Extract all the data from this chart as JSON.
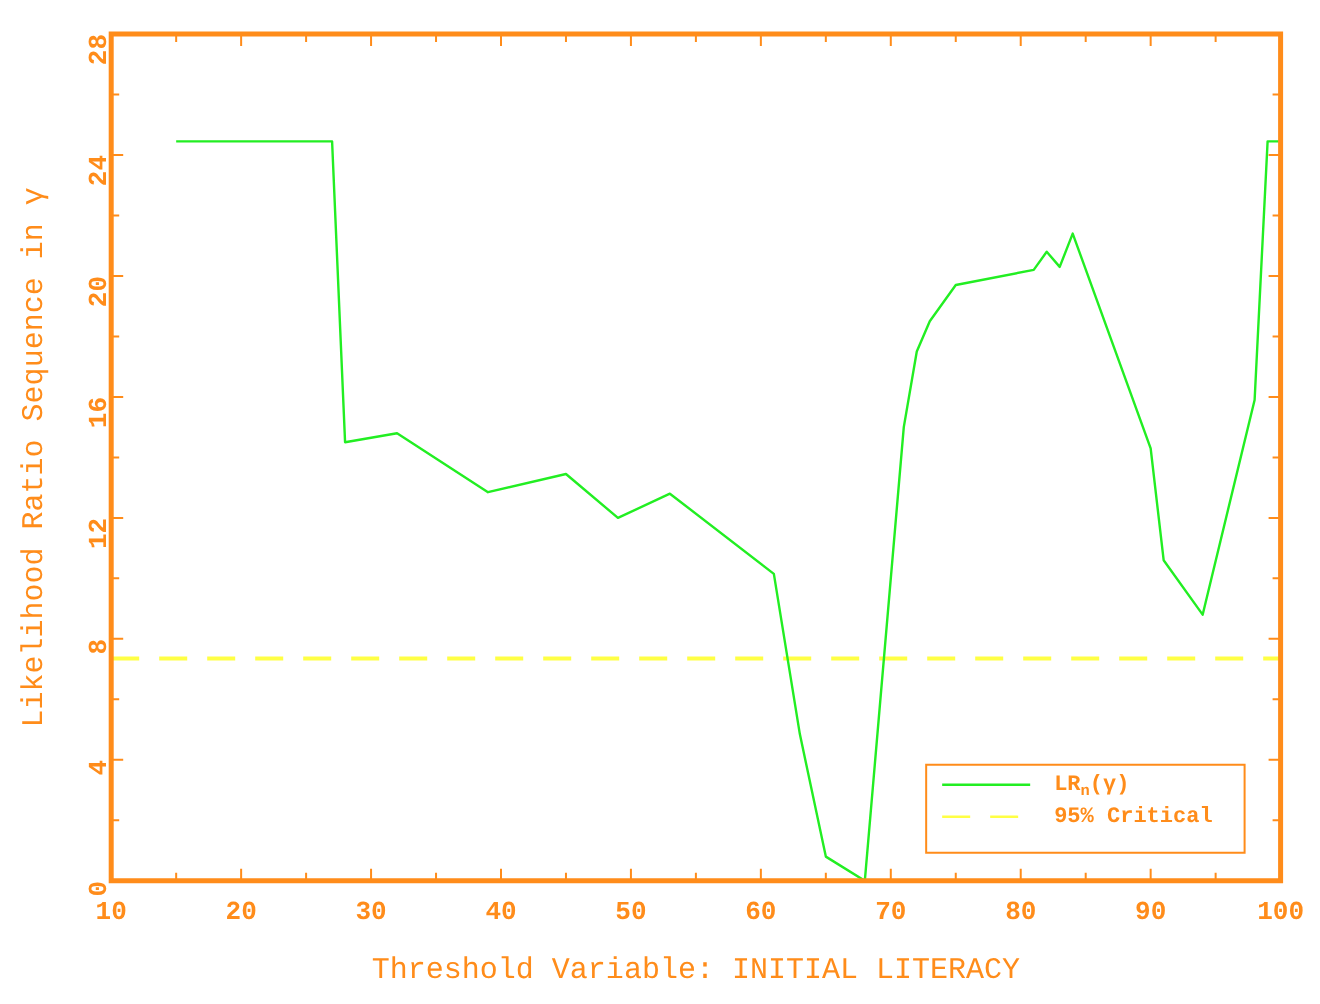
{
  "chart_data": {
    "type": "line",
    "xlabel": "Threshold Variable: INITIAL LITERACY",
    "ylabel": "Likelihood Ratio Sequence in γ",
    "xlim": [
      10,
      100
    ],
    "ylim": [
      0,
      28
    ],
    "xticks": [
      10,
      {
        "value": 15,
        "label": null
      },
      20,
      {
        "value": 25,
        "label": null
      },
      30,
      {
        "value": 35,
        "label": null
      },
      40,
      {
        "value": 45,
        "label": null
      },
      50,
      {
        "value": 55,
        "label": null
      },
      60,
      {
        "value": 65,
        "label": null
      },
      70,
      {
        "value": 75,
        "label": null
      },
      80,
      {
        "value": 85,
        "label": null
      },
      90,
      {
        "value": 95,
        "label": null
      },
      100
    ],
    "yticks": [
      0,
      {
        "value": 2,
        "label": null
      },
      4,
      {
        "value": 6,
        "label": null
      },
      8,
      {
        "value": 10,
        "label": null
      },
      12,
      {
        "value": 14,
        "label": null
      },
      16,
      {
        "value": 18,
        "label": null
      },
      20,
      {
        "value": 22,
        "label": null
      },
      24,
      {
        "value": 26,
        "label": null
      },
      28
    ],
    "grid": false,
    "legend": "bottom right",
    "marker": "none",
    "series": [
      {
        "name": "LR$_{n}$(γ)",
        "color": "#22ee22",
        "line_style": "solid",
        "x": [
          15,
          27,
          28,
          32,
          39,
          45,
          49,
          53,
          61,
          63,
          65,
          68,
          71,
          72,
          73,
          75,
          81,
          82,
          83,
          84,
          90,
          91,
          94,
          98,
          99,
          100
        ],
        "values": [
          24.45,
          24.45,
          14.5,
          14.8,
          12.85,
          13.45,
          12.0,
          12.8,
          10.15,
          4.85,
          0.8,
          0.0,
          15.0,
          17.5,
          18.5,
          19.7,
          20.2,
          20.8,
          20.3,
          21.4,
          14.3,
          10.6,
          8.8,
          15.9,
          24.45,
          24.45
        ]
      }
    ],
    "ref_lines": [
      {
        "axis": "y",
        "value": 7.35,
        "label": "95% Critical",
        "color": "#ffff44",
        "line_style": "dashed"
      }
    ]
  }
}
